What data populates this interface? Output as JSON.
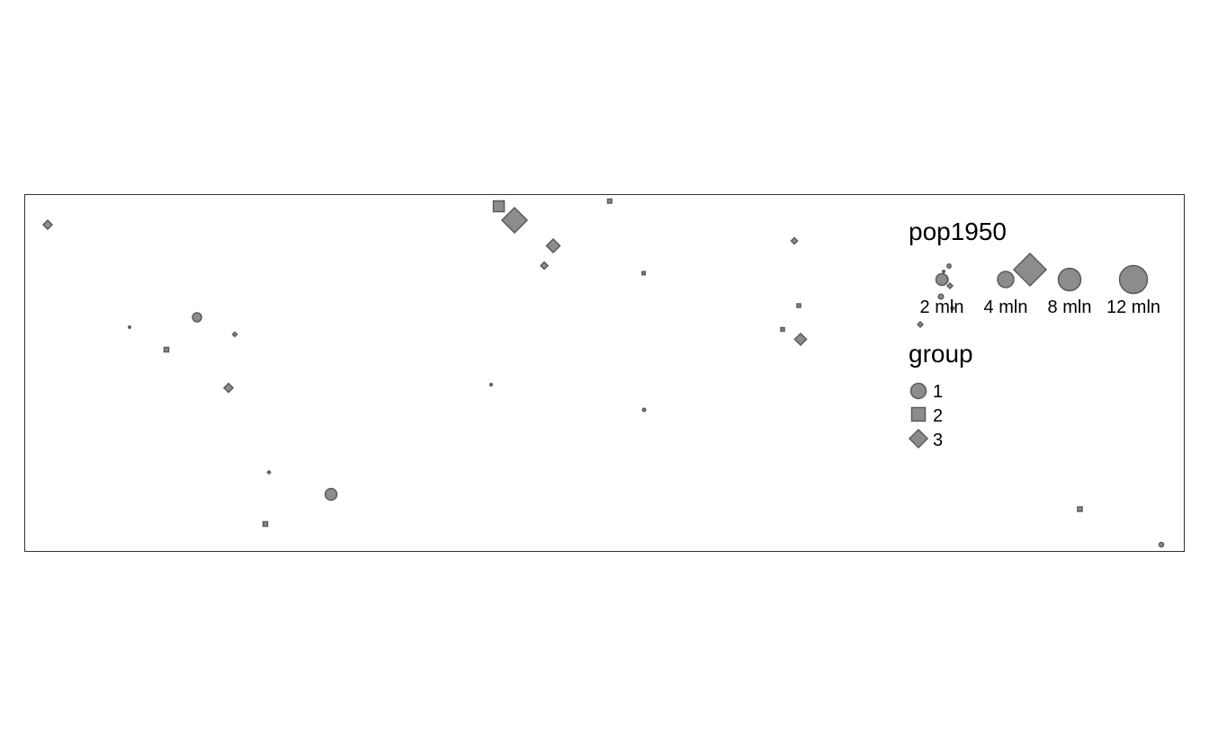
{
  "legend": {
    "size_title": "pop1950",
    "size_entries": [
      {
        "label": "2 mln",
        "value_mln": 2
      },
      {
        "label": "4 mln",
        "value_mln": 4
      },
      {
        "label": "8 mln",
        "value_mln": 8
      },
      {
        "label": "12 mln",
        "value_mln": 12
      }
    ],
    "group_title": "group",
    "group_entries": [
      {
        "label": "1",
        "shape": "circle"
      },
      {
        "label": "2",
        "shape": "square"
      },
      {
        "label": "3",
        "shape": "diamond"
      }
    ]
  },
  "colors": {
    "fill": "#8c8c8c",
    "stroke": "#5a5a5a",
    "frame": "#333333",
    "text": "#000000"
  }
}
